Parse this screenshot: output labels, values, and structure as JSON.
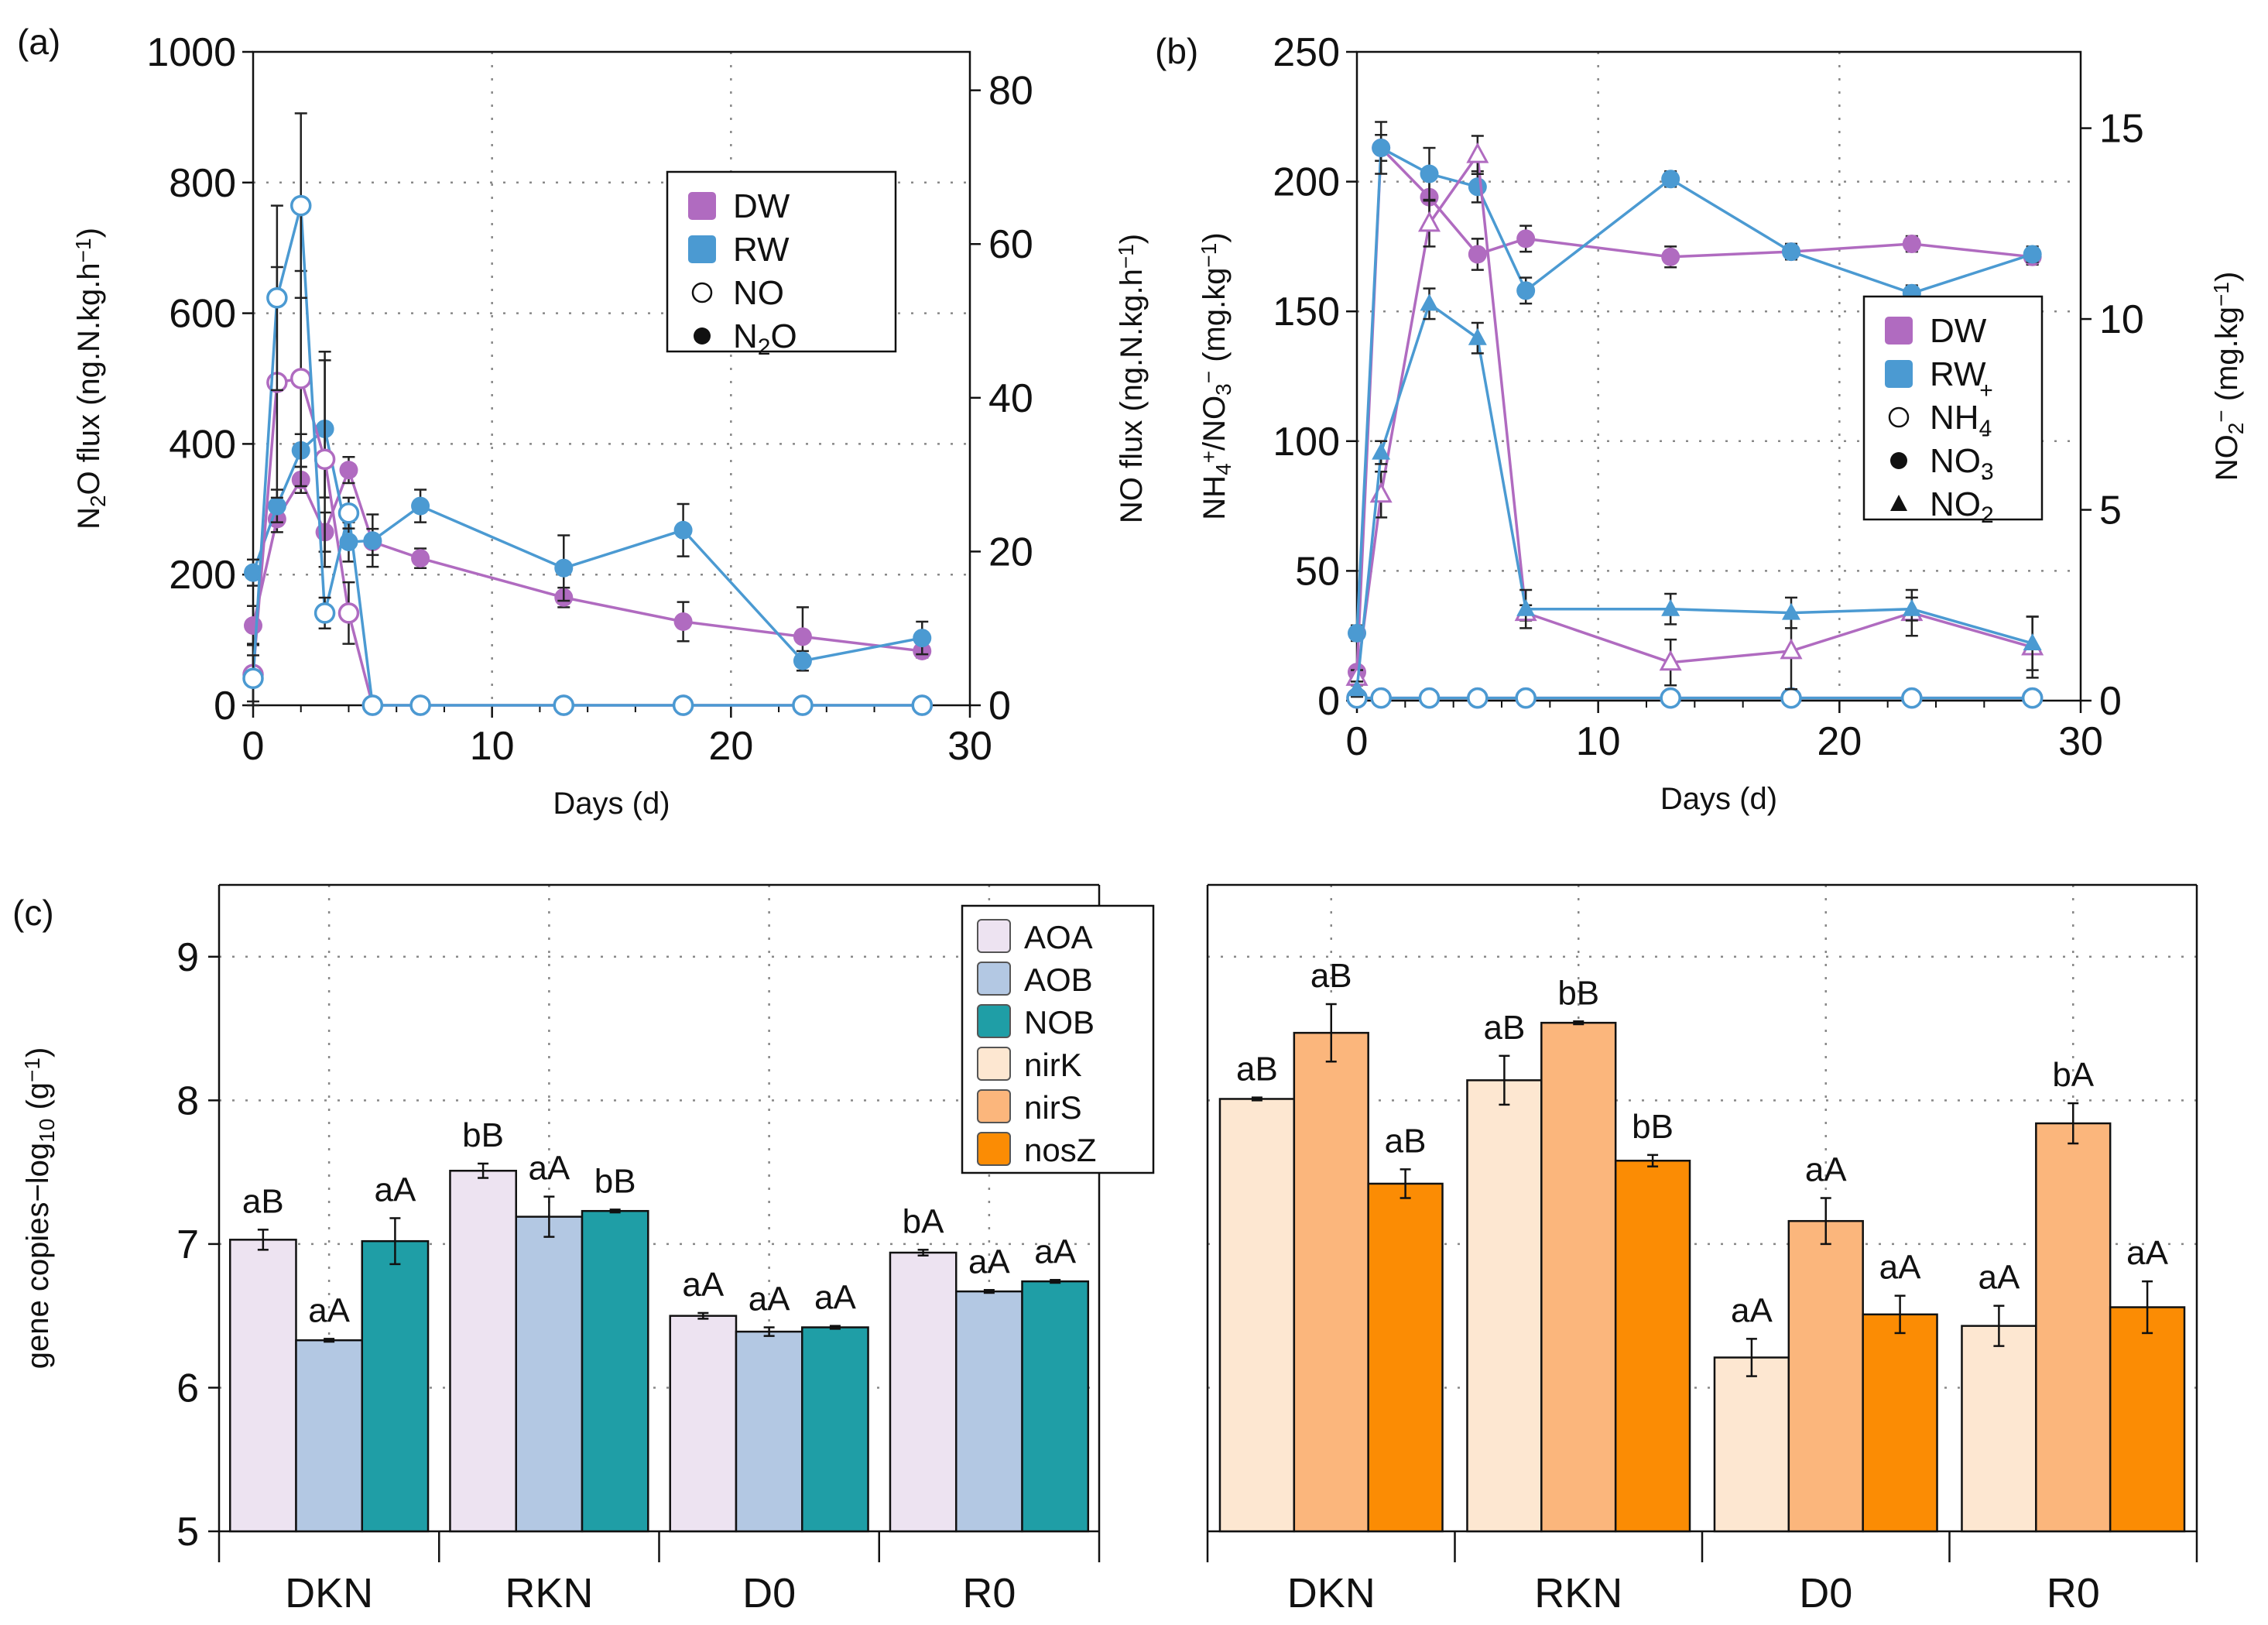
{
  "colors": {
    "dw": "#b06bc0",
    "rw": "#4b9ad2",
    "AOA": "#ede3f1",
    "AOB": "#b3c8e3",
    "NOB": "#1f9ea6",
    "nirK": "#fde7d1",
    "nirS": "#fbb67c",
    "nosZ": "#fb8c04"
  },
  "panels": {
    "a": "(a)",
    "b": "(b)",
    "c": "(c)"
  },
  "chart_data": [
    {
      "id": "a",
      "type": "line",
      "xlabel": "Days (d)",
      "ylabel": [
        "N",
        "2",
        "O flux (ng.N.kg.h",
        "−1",
        ")"
      ],
      "ylabel2": [
        "NO flux  (ng.N.kg.h",
        "−1",
        ")"
      ],
      "xlim": [
        0,
        30
      ],
      "ylim": [
        0,
        1000
      ],
      "ylim2": [
        0,
        85
      ],
      "xticks": [
        0,
        10,
        20,
        30
      ],
      "yticks": [
        0,
        200,
        400,
        600,
        800,
        1000
      ],
      "yticks2": [
        0,
        20,
        40,
        60,
        80
      ],
      "legend": [
        {
          "label": "DW",
          "marker": "square",
          "color": "dw"
        },
        {
          "label": "RW",
          "marker": "square",
          "color": "rw"
        },
        {
          "label": "NO",
          "marker": "open-circle"
        },
        {
          "label": "N2O",
          "main": "N",
          "sub": "2",
          "tail": "O",
          "marker": "filled-circle"
        }
      ],
      "series": [
        {
          "name": "DW N2O",
          "color": "dw",
          "marker": "filled",
          "axis": "left",
          "x": [
            0,
            1,
            2,
            3,
            4,
            5,
            7,
            13,
            18,
            23,
            28
          ],
          "y": [
            122,
            285,
            345,
            265,
            360,
            250,
            225,
            165,
            128,
            105,
            83
          ],
          "err": [
            30,
            20,
            20,
            30,
            20,
            20,
            15,
            15,
            30,
            45,
            10
          ]
        },
        {
          "name": "RW N2O",
          "color": "rw",
          "marker": "filled",
          "axis": "left",
          "x": [
            0,
            1,
            2,
            3,
            4,
            5,
            7,
            13,
            18,
            23,
            28
          ],
          "y": [
            203,
            305,
            390,
            423,
            250,
            252,
            305,
            210,
            268,
            68,
            103
          ],
          "err": [
            20,
            25,
            25,
            105,
            30,
            40,
            25,
            50,
            40,
            15,
            25
          ]
        },
        {
          "name": "DW NO",
          "color": "dw",
          "marker": "open",
          "axis": "right",
          "x": [
            0,
            1,
            2,
            3,
            4,
            5,
            7,
            13,
            18,
            23,
            28
          ],
          "y": [
            4.0,
            42.0,
            42.5,
            32.0,
            12.0,
            0,
            0,
            0,
            0,
            0,
            0
          ],
          "err": [
            4,
            15,
            14,
            14,
            4,
            0,
            0,
            0,
            0,
            0,
            0
          ]
        },
        {
          "name": "RW NO",
          "color": "rw",
          "marker": "open",
          "axis": "right",
          "x": [
            0,
            1,
            2,
            3,
            4,
            5,
            7,
            13,
            18,
            23,
            28
          ],
          "y": [
            3.5,
            53.0,
            65.0,
            12.0,
            25.0,
            0,
            0,
            0,
            0,
            0,
            0
          ],
          "err": [
            3,
            12,
            12,
            2,
            2,
            0,
            0,
            0,
            0,
            0,
            0
          ]
        }
      ]
    },
    {
      "id": "b",
      "type": "line",
      "xlabel": "Days (d)",
      "ylabel": [
        "NH",
        "4",
        "+",
        "/NO",
        "3",
        "−",
        " (mg.kg",
        "−1",
        ")"
      ],
      "ylabel2": [
        "NO",
        "2",
        "−",
        " (mg.kg",
        "−1",
        ")"
      ],
      "xlim": [
        0,
        30
      ],
      "ylim": [
        0,
        250
      ],
      "ylim2": [
        0,
        17
      ],
      "xticks": [
        0,
        10,
        20,
        30
      ],
      "yticks": [
        0,
        50,
        100,
        150,
        200,
        250
      ],
      "yticks2": [
        0,
        5,
        10,
        15
      ],
      "legend": [
        {
          "label": "DW",
          "marker": "square",
          "color": "dw"
        },
        {
          "label": "RW",
          "marker": "square",
          "color": "rw"
        },
        {
          "label": "NH4+",
          "main": "NH",
          "sub": "4",
          "sup": "+",
          "marker": "open-circle"
        },
        {
          "label": "NO3-",
          "main": "NO",
          "sub": "3",
          "sup": "-",
          "marker": "filled-circle"
        },
        {
          "label": "NO2-",
          "main": "NO",
          "sub": "2",
          "sup": "-",
          "marker": "triangle"
        }
      ],
      "series": [
        {
          "name": "DW NO3",
          "color": "dw",
          "marker": "filled",
          "axis": "left",
          "x": [
            0,
            1,
            3,
            5,
            7,
            13,
            18,
            23,
            28
          ],
          "y": [
            11,
            213,
            194,
            172,
            178,
            171,
            173,
            176,
            171
          ],
          "err": [
            2,
            5,
            10,
            6,
            5,
            4,
            3,
            3,
            3
          ]
        },
        {
          "name": "RW NO3",
          "color": "rw",
          "marker": "filled",
          "axis": "left",
          "x": [
            0,
            1,
            3,
            5,
            7,
            13,
            18,
            23,
            28
          ],
          "y": [
            26,
            213,
            203,
            198,
            158,
            201,
            173,
            157,
            172
          ],
          "err": [
            3,
            10,
            10,
            6,
            5,
            3,
            3,
            3,
            3
          ]
        },
        {
          "name": "DW NH4",
          "color": "dw",
          "marker": "open",
          "axis": "left",
          "x": [
            0,
            1,
            3,
            5,
            7,
            13,
            18,
            23,
            28
          ],
          "y": [
            1,
            1,
            1,
            1,
            1,
            1,
            1,
            1,
            1
          ],
          "err": [
            0,
            0,
            0,
            0,
            0,
            0,
            0,
            0,
            0
          ]
        },
        {
          "name": "RW NH4",
          "color": "rw",
          "marker": "open",
          "axis": "left",
          "x": [
            0,
            1,
            3,
            5,
            7,
            13,
            18,
            23,
            28
          ],
          "y": [
            1,
            1,
            1,
            1,
            1,
            1,
            1,
            1,
            1
          ],
          "err": [
            0,
            0,
            0,
            0,
            0,
            0,
            0,
            0,
            0
          ]
        },
        {
          "name": "DW NO2",
          "color": "dw",
          "marker": "tri-open",
          "axis": "right",
          "x": [
            0,
            1,
            3,
            5,
            7,
            13,
            18,
            23,
            28
          ],
          "y": [
            0.6,
            5.4,
            12.5,
            14.3,
            2.3,
            1.0,
            1.3,
            2.3,
            1.4
          ],
          "err": [
            0.2,
            0.6,
            0.6,
            0.5,
            0.2,
            0.6,
            1.0,
            0.6,
            0.8
          ]
        },
        {
          "name": "RW NO2",
          "color": "rw",
          "marker": "tri-filled",
          "axis": "right",
          "x": [
            0,
            1,
            3,
            5,
            7,
            13,
            18,
            23,
            28
          ],
          "y": [
            0.3,
            6.5,
            10.4,
            9.5,
            2.4,
            2.4,
            2.3,
            2.4,
            1.5
          ],
          "err": [
            0.2,
            0.3,
            0.4,
            0.4,
            0.5,
            0.4,
            0.4,
            0.3,
            0.7
          ]
        }
      ]
    },
    {
      "id": "c",
      "type": "bar",
      "ylabel": [
        "gene copies−log",
        "10",
        " (g",
        "−1",
        ")"
      ],
      "ylim": [
        5,
        9.5
      ],
      "yticks": [
        5,
        6,
        7,
        8,
        9
      ],
      "categories": [
        "DKN",
        "RKN",
        "D0",
        "R0"
      ],
      "groups": [
        {
          "series": [
            {
              "name": "AOA",
              "color": "AOA",
              "values": [
                7.03,
                7.51,
                6.5,
                6.94
              ],
              "err": [
                0.07,
                0.05,
                0.02,
                0.02
              ],
              "labels": [
                "aB",
                "bB",
                "aA",
                "bA"
              ]
            },
            {
              "name": "AOB",
              "color": "AOB",
              "values": [
                6.33,
                7.19,
                6.39,
                6.67
              ],
              "err": [
                0.01,
                0.14,
                0.03,
                0.01
              ],
              "labels": [
                "aA",
                "aA",
                "aA",
                "aA"
              ]
            },
            {
              "name": "NOB",
              "color": "NOB",
              "values": [
                7.02,
                7.23,
                6.42,
                6.74
              ],
              "err": [
                0.16,
                0.01,
                0.01,
                0.01
              ],
              "labels": [
                "aA",
                "bB",
                "aA",
                "aA"
              ]
            }
          ]
        },
        {
          "series": [
            {
              "name": "nirK",
              "color": "nirK",
              "values": [
                8.01,
                8.14,
                6.21,
                6.43
              ],
              "err": [
                0.01,
                0.17,
                0.13,
                0.14
              ],
              "labels": [
                "aB",
                "aB",
                "aA",
                "aA"
              ]
            },
            {
              "name": "nirS",
              "color": "nirS",
              "values": [
                8.47,
                8.54,
                7.16,
                7.84
              ],
              "err": [
                0.2,
                0.01,
                0.16,
                0.14
              ],
              "labels": [
                "aB",
                "bB",
                "aA",
                "bA"
              ]
            },
            {
              "name": "nosZ",
              "color": "nosZ",
              "values": [
                7.42,
                7.58,
                6.51,
                6.56
              ],
              "err": [
                0.1,
                0.04,
                0.13,
                0.18
              ],
              "labels": [
                "aB",
                "bB",
                "aA",
                "aA"
              ]
            }
          ]
        }
      ],
      "legend": [
        "AOA",
        "AOB",
        "NOB",
        "nirK",
        "nirS",
        "nosZ"
      ]
    }
  ]
}
